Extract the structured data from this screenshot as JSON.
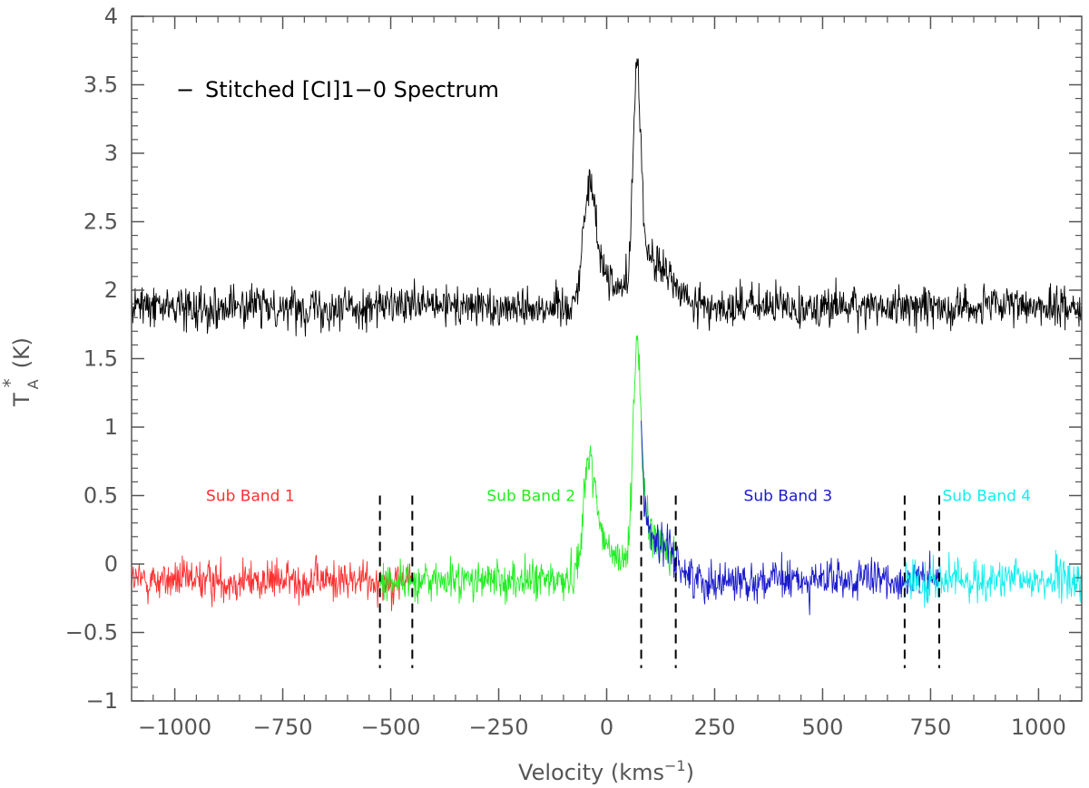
{
  "chart_data": {
    "type": "line",
    "title": "",
    "xlabel_main": "Velocity (kms",
    "xlabel_exp": "−1",
    "xlabel_close": ")",
    "ylabel_main": "T",
    "ylabel_star": "*",
    "ylabel_sub": "A",
    "ylabel_unit": "(K)",
    "xlim": [
      -1100,
      1100
    ],
    "ylim": [
      -1,
      4
    ],
    "x_ticks": [
      -1000,
      -750,
      -500,
      -250,
      0,
      250,
      500,
      750,
      1000
    ],
    "x_tick_labels": [
      "−1000",
      "−750",
      "−500",
      "−250",
      "0",
      "250",
      "500",
      "750",
      "1000"
    ],
    "y_ticks": [
      -1,
      -0.5,
      0,
      0.5,
      1,
      1.5,
      2,
      2.5,
      3,
      3.5,
      4
    ],
    "y_tick_labels": [
      "−1",
      "−0.5",
      "0",
      "0.5",
      "1",
      "1.5",
      "2",
      "2.5",
      "3",
      "3.5",
      "4"
    ],
    "legend": {
      "marker": "−",
      "text": "Stitched [CI]1−0 Spectrum",
      "position": "top-left"
    },
    "stitched": {
      "name": "Stitched [CI]1−0 Spectrum",
      "color": "#000000",
      "offset": 2.0,
      "baseline": -0.12,
      "noise_rms": 0.1
    },
    "components": [
      {
        "center": -40,
        "sigma": 14,
        "amp": 0.75
      },
      {
        "center": -10,
        "sigma": 30,
        "amp": 0.25
      },
      {
        "center": 70,
        "sigma": 9,
        "amp": 1.45
      },
      {
        "center": 85,
        "sigma": 25,
        "amp": 0.35
      },
      {
        "center": 140,
        "sigma": 28,
        "amp": 0.2
      }
    ],
    "series": [
      {
        "name": "Sub Band 1",
        "label": "Sub Band 1",
        "color": "#ff3030",
        "x_range": [
          -1100,
          -450
        ]
      },
      {
        "name": "Sub Band 2",
        "label": "Sub Band 2",
        "color": "#22ee22",
        "x_range": [
          -525,
          160
        ]
      },
      {
        "name": "Sub Band 3",
        "label": "Sub Band 3",
        "color": "#1a1acc",
        "x_range": [
          80,
          770
        ]
      },
      {
        "name": "Sub Band 4",
        "label": "Sub Band 4",
        "color": "#11eeee",
        "x_range": [
          690,
          1100
        ]
      }
    ],
    "band_label_positions": [
      {
        "x": -825,
        "y": 0.46
      },
      {
        "x": -175,
        "y": 0.46
      },
      {
        "x": 420,
        "y": 0.46
      },
      {
        "x": 880,
        "y": 0.46
      }
    ],
    "overlap_markers": {
      "x": [
        -525,
        -450,
        80,
        160,
        690,
        770
      ],
      "y_range": [
        -0.76,
        0.5
      ],
      "style": "dashed",
      "color": "#000000"
    }
  }
}
